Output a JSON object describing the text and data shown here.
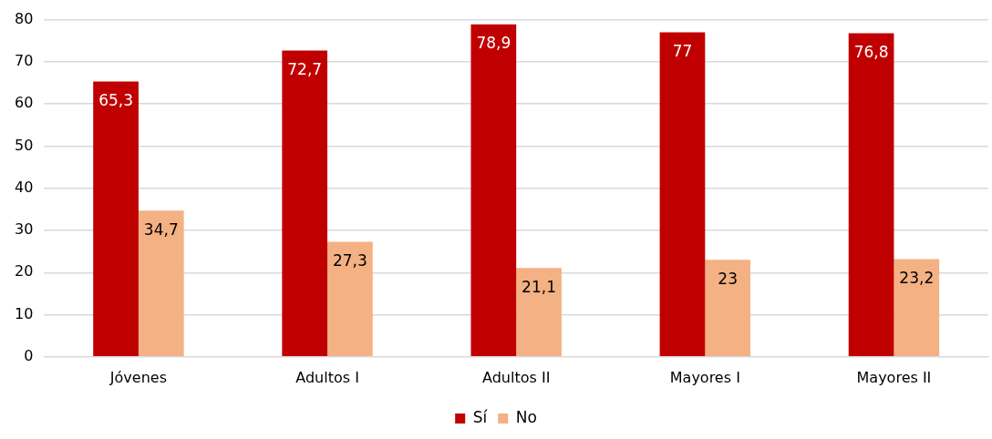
{
  "chart_data": {
    "type": "bar",
    "categories": [
      "Jóvenes",
      "Adultos I",
      "Adultos II",
      "Mayores I",
      "Mayores II"
    ],
    "series": [
      {
        "name": "Sí",
        "color": "#c00000",
        "values": [
          65.3,
          72.7,
          78.9,
          77,
          76.8
        ],
        "value_labels": [
          "65,3",
          "72,7",
          "78,9",
          "77",
          "76,8"
        ]
      },
      {
        "name": "No",
        "color": "#f4b183",
        "values": [
          34.7,
          27.3,
          21.1,
          23,
          23.2
        ],
        "value_labels": [
          "34,7",
          "27,3",
          "21,1",
          "23",
          "23,2"
        ]
      }
    ],
    "ylim": [
      0,
      80
    ],
    "yticks": [
      0,
      10,
      20,
      30,
      40,
      50,
      60,
      70,
      80
    ],
    "grid": "y",
    "legend": "bottom"
  }
}
